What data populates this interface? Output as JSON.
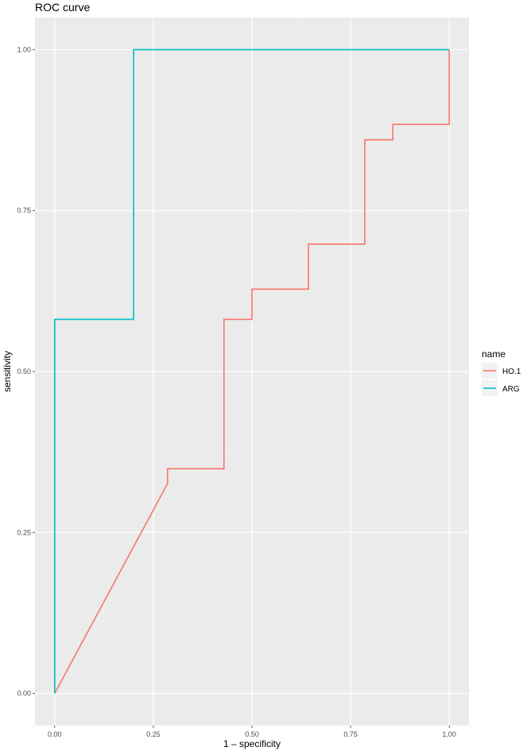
{
  "chart_data": {
    "type": "line",
    "title": "ROC curve",
    "xlabel": "1 – specificity",
    "ylabel": "sensitivity",
    "xlim": [
      -0.05,
      1.05
    ],
    "ylim": [
      -0.05,
      1.05
    ],
    "x_ticks": [
      {
        "value": 0,
        "label": "0.00"
      },
      {
        "value": 0.25,
        "label": "0.25"
      },
      {
        "value": 0.5,
        "label": "0.50"
      },
      {
        "value": 0.75,
        "label": "0.75"
      },
      {
        "value": 1,
        "label": "1.00"
      }
    ],
    "y_ticks": [
      {
        "value": 0,
        "label": "0.00"
      },
      {
        "value": 0.25,
        "label": "0.25"
      },
      {
        "value": 0.5,
        "label": "0.50"
      },
      {
        "value": 0.75,
        "label": "0.75"
      },
      {
        "value": 1,
        "label": "1.00"
      }
    ],
    "grid": true,
    "legend": {
      "title": "name",
      "placement": "right"
    },
    "series": [
      {
        "name": "HO.1",
        "color": "#f8766d",
        "x": [
          0,
          0.286,
          0.286,
          0.429,
          0.429,
          0.5,
          0.5,
          0.643,
          0.643,
          0.786,
          0.786,
          0.857,
          0.857,
          1,
          1
        ],
        "y": [
          0,
          0.326,
          0.349,
          0.349,
          0.581,
          0.581,
          0.628,
          0.628,
          0.698,
          0.698,
          0.86,
          0.86,
          0.884,
          0.884,
          1
        ]
      },
      {
        "name": "ARG",
        "color": "#00bfc4",
        "x": [
          0,
          0,
          0.2,
          0.2,
          1
        ],
        "y": [
          0,
          0.581,
          0.581,
          1,
          1
        ]
      }
    ]
  }
}
